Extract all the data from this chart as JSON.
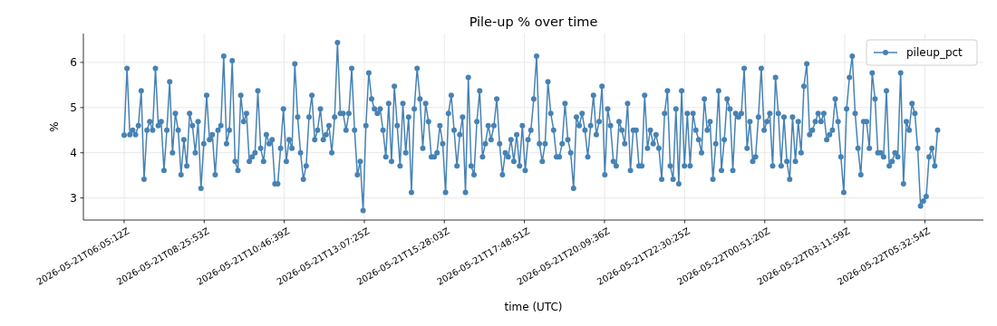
{
  "chart_data": {
    "type": "line",
    "title": "Pile-up % over time",
    "xlabel": "time (UTC)",
    "ylabel": "%",
    "x": [
      "2026-05-21T06:05:12",
      "2026-05-21T06:10:12",
      "2026-05-21T06:15:12",
      "2026-05-21T06:20:12",
      "2026-05-21T06:25:12",
      "2026-05-21T06:30:12",
      "2026-05-21T06:35:12",
      "2026-05-21T06:40:12",
      "2026-05-21T06:45:12",
      "2026-05-21T06:50:12",
      "2026-05-21T06:55:12",
      "2026-05-21T07:00:12",
      "2026-05-21T07:05:12",
      "2026-05-21T07:10:12",
      "2026-05-21T07:15:12",
      "2026-05-21T07:20:12",
      "2026-05-21T07:25:12",
      "2026-05-21T07:30:12",
      "2026-05-21T07:35:12",
      "2026-05-21T07:40:12",
      "2026-05-21T07:45:12",
      "2026-05-21T07:50:12",
      "2026-05-21T07:55:12",
      "2026-05-21T08:00:12",
      "2026-05-21T08:05:12",
      "2026-05-21T08:10:12",
      "2026-05-21T08:15:12",
      "2026-05-21T08:20:12",
      "2026-05-21T08:25:12",
      "2026-05-21T08:30:12",
      "2026-05-21T08:35:12",
      "2026-05-21T08:40:12",
      "2026-05-21T08:45:12",
      "2026-05-21T08:50:12",
      "2026-05-21T08:55:12",
      "2026-05-21T09:00:12",
      "2026-05-21T09:05:12",
      "2026-05-21T09:10:12",
      "2026-05-21T09:15:12",
      "2026-05-21T09:20:12",
      "2026-05-21T09:25:12",
      "2026-05-21T09:30:12",
      "2026-05-21T09:35:12",
      "2026-05-21T09:40:12",
      "2026-05-21T09:45:12",
      "2026-05-21T09:50:12",
      "2026-05-21T09:55:12",
      "2026-05-21T10:00:12",
      "2026-05-21T10:05:12",
      "2026-05-21T10:10:12",
      "2026-05-21T10:15:12",
      "2026-05-21T10:20:12",
      "2026-05-21T10:25:12",
      "2026-05-21T10:30:12",
      "2026-05-21T10:35:12",
      "2026-05-21T10:40:12",
      "2026-05-21T10:45:12",
      "2026-05-21T10:50:12",
      "2026-05-21T10:55:12",
      "2026-05-21T11:00:12",
      "2026-05-21T11:05:12",
      "2026-05-21T11:10:12",
      "2026-05-21T11:15:12",
      "2026-05-21T11:20:12",
      "2026-05-21T11:25:12",
      "2026-05-21T11:30:12",
      "2026-05-21T11:35:12",
      "2026-05-21T11:40:12",
      "2026-05-21T11:45:12",
      "2026-05-21T11:50:12",
      "2026-05-21T11:55:12",
      "2026-05-21T12:00:12",
      "2026-05-21T12:05:12",
      "2026-05-21T12:10:12",
      "2026-05-21T12:15:12",
      "2026-05-21T12:20:12",
      "2026-05-21T12:25:12",
      "2026-05-21T12:30:12",
      "2026-05-21T12:35:12",
      "2026-05-21T12:40:12",
      "2026-05-21T12:45:12",
      "2026-05-21T12:50:12",
      "2026-05-21T12:55:12",
      "2026-05-21T13:00:12",
      "2026-05-21T13:05:12",
      "2026-05-21T13:10:12",
      "2026-05-21T13:15:12",
      "2026-05-21T13:20:12",
      "2026-05-21T13:25:12",
      "2026-05-21T13:30:12",
      "2026-05-21T13:35:12",
      "2026-05-21T13:40:12",
      "2026-05-21T13:45:12",
      "2026-05-21T13:50:12",
      "2026-05-21T13:55:12",
      "2026-05-21T14:00:12",
      "2026-05-21T14:05:12",
      "2026-05-21T14:10:12",
      "2026-05-21T14:15:12",
      "2026-05-21T14:20:12",
      "2026-05-21T14:25:12",
      "2026-05-21T14:30:12",
      "2026-05-21T14:35:12",
      "2026-05-21T14:40:12",
      "2026-05-21T14:45:12",
      "2026-05-21T14:50:12",
      "2026-05-21T14:55:12",
      "2026-05-21T15:00:12",
      "2026-05-21T15:05:12",
      "2026-05-21T15:10:12",
      "2026-05-21T15:15:12",
      "2026-05-21T15:20:12",
      "2026-05-21T15:25:12",
      "2026-05-21T15:30:12",
      "2026-05-21T15:35:12",
      "2026-05-21T15:40:12",
      "2026-05-21T15:45:12",
      "2026-05-21T15:50:12",
      "2026-05-21T15:55:12",
      "2026-05-21T16:00:12",
      "2026-05-21T16:05:12",
      "2026-05-21T16:10:12",
      "2026-05-21T16:15:12",
      "2026-05-21T16:20:12",
      "2026-05-21T16:25:12",
      "2026-05-21T16:30:12",
      "2026-05-21T16:35:12",
      "2026-05-21T16:40:12",
      "2026-05-21T16:45:12",
      "2026-05-21T16:50:12",
      "2026-05-21T16:55:12",
      "2026-05-21T17:00:12",
      "2026-05-21T17:05:12",
      "2026-05-21T17:10:12",
      "2026-05-21T17:15:12",
      "2026-05-21T17:20:12",
      "2026-05-21T17:25:12",
      "2026-05-21T17:30:12",
      "2026-05-21T17:35:12",
      "2026-05-21T17:40:12",
      "2026-05-21T17:45:12",
      "2026-05-21T17:50:12",
      "2026-05-21T17:55:12",
      "2026-05-21T18:00:12",
      "2026-05-21T18:05:12",
      "2026-05-21T18:10:12",
      "2026-05-21T18:15:12",
      "2026-05-21T18:20:12",
      "2026-05-21T18:25:12",
      "2026-05-21T18:30:12",
      "2026-05-21T18:35:12",
      "2026-05-21T18:40:12",
      "2026-05-21T18:45:12",
      "2026-05-21T18:50:12",
      "2026-05-21T18:55:12",
      "2026-05-21T19:00:12",
      "2026-05-21T19:05:12",
      "2026-05-21T19:10:12",
      "2026-05-21T19:15:12",
      "2026-05-21T19:20:12",
      "2026-05-21T19:25:12",
      "2026-05-21T19:30:12",
      "2026-05-21T19:35:12",
      "2026-05-21T19:40:12",
      "2026-05-21T19:45:12",
      "2026-05-21T19:50:12",
      "2026-05-21T19:55:12",
      "2026-05-21T20:00:12",
      "2026-05-21T20:05:12",
      "2026-05-21T20:10:12",
      "2026-05-21T20:15:12",
      "2026-05-21T20:20:12",
      "2026-05-21T20:25:12",
      "2026-05-21T20:30:12",
      "2026-05-21T20:35:12",
      "2026-05-21T20:40:12",
      "2026-05-21T20:45:12",
      "2026-05-21T20:50:12",
      "2026-05-21T20:55:12",
      "2026-05-21T21:00:12",
      "2026-05-21T21:05:12",
      "2026-05-21T21:10:12",
      "2026-05-21T21:15:12",
      "2026-05-21T21:20:12",
      "2026-05-21T21:25:12",
      "2026-05-21T21:30:12",
      "2026-05-21T21:35:12",
      "2026-05-21T21:40:12",
      "2026-05-21T21:45:12",
      "2026-05-21T21:50:12",
      "2026-05-21T21:55:12",
      "2026-05-21T22:00:12",
      "2026-05-21T22:05:12",
      "2026-05-21T22:10:12",
      "2026-05-21T22:15:12",
      "2026-05-21T22:20:12",
      "2026-05-21T22:25:12",
      "2026-05-21T22:30:12",
      "2026-05-21T22:35:12",
      "2026-05-21T22:40:12",
      "2026-05-21T22:45:12",
      "2026-05-21T22:50:12",
      "2026-05-21T22:55:12",
      "2026-05-21T23:00:12",
      "2026-05-21T23:05:12",
      "2026-05-21T23:10:12",
      "2026-05-21T23:15:12",
      "2026-05-21T23:20:12",
      "2026-05-21T23:25:12",
      "2026-05-21T23:30:12",
      "2026-05-21T23:35:12",
      "2026-05-21T23:40:12",
      "2026-05-21T23:45:12",
      "2026-05-21T23:50:12",
      "2026-05-21T23:55:12",
      "2026-05-22T00:00:12",
      "2026-05-22T00:05:12",
      "2026-05-22T00:10:12",
      "2026-05-22T00:15:12",
      "2026-05-22T00:20:12",
      "2026-05-22T00:25:12",
      "2026-05-22T00:30:12",
      "2026-05-22T00:35:12",
      "2026-05-22T00:40:12",
      "2026-05-22T00:45:12",
      "2026-05-22T00:50:12",
      "2026-05-22T00:55:12",
      "2026-05-22T01:00:12",
      "2026-05-22T01:05:12",
      "2026-05-22T01:10:12",
      "2026-05-22T01:15:12",
      "2026-05-22T01:20:12",
      "2026-05-22T01:25:12",
      "2026-05-22T01:30:12",
      "2026-05-22T01:35:12",
      "2026-05-22T01:40:12",
      "2026-05-22T01:45:12",
      "2026-05-22T01:50:12",
      "2026-05-22T01:55:12",
      "2026-05-22T02:00:12",
      "2026-05-22T02:05:12",
      "2026-05-22T02:10:12",
      "2026-05-22T02:15:12",
      "2026-05-22T02:20:12",
      "2026-05-22T02:25:12",
      "2026-05-22T02:30:12",
      "2026-05-22T02:35:12",
      "2026-05-22T02:40:12",
      "2026-05-22T02:45:12",
      "2026-05-22T02:50:12",
      "2026-05-22T02:55:12",
      "2026-05-22T03:00:12",
      "2026-05-22T03:05:12",
      "2026-05-22T03:10:12",
      "2026-05-22T03:15:12",
      "2026-05-22T03:20:12",
      "2026-05-22T03:25:12",
      "2026-05-22T03:30:12",
      "2026-05-22T03:35:12",
      "2026-05-22T03:40:12",
      "2026-05-22T03:45:12",
      "2026-05-22T03:50:12",
      "2026-05-22T03:55:12",
      "2026-05-22T04:00:12",
      "2026-05-22T04:05:12",
      "2026-05-22T04:10:12",
      "2026-05-22T04:15:12",
      "2026-05-22T04:20:12",
      "2026-05-22T04:25:12",
      "2026-05-22T04:30:12",
      "2026-05-22T04:35:12",
      "2026-05-22T04:40:12",
      "2026-05-22T04:45:12",
      "2026-05-22T04:50:12",
      "2026-05-22T04:55:12",
      "2026-05-22T05:00:12",
      "2026-05-22T05:05:12",
      "2026-05-22T05:10:12",
      "2026-05-22T05:15:12",
      "2026-05-22T05:20:12",
      "2026-05-22T05:25:12",
      "2026-05-22T05:30:12",
      "2026-05-22T05:35:12",
      "2026-05-22T05:40:12",
      "2026-05-22T05:45:12",
      "2026-05-22T05:50:12",
      "2026-05-22T05:55:12"
    ],
    "series": [
      {
        "name": "pileup_pct",
        "color": "#4682b4",
        "values": [
          4.39,
          5.87,
          4.4,
          4.5,
          4.4,
          4.6,
          5.37,
          3.41,
          4.5,
          4.69,
          4.5,
          5.87,
          4.6,
          4.69,
          3.61,
          4.5,
          5.57,
          4.0,
          4.87,
          4.5,
          3.51,
          4.29,
          3.71,
          4.87,
          4.6,
          4.0,
          4.69,
          3.21,
          4.2,
          5.27,
          4.29,
          4.4,
          3.51,
          4.5,
          4.6,
          6.14,
          4.2,
          4.5,
          6.04,
          3.81,
          3.61,
          5.27,
          4.69,
          4.87,
          3.81,
          3.91,
          4.0,
          5.37,
          4.1,
          3.81,
          4.4,
          4.2,
          4.29,
          3.31,
          3.31,
          4.1,
          4.97,
          3.81,
          4.29,
          4.1,
          5.97,
          4.79,
          4.0,
          3.41,
          3.71,
          4.79,
          5.27,
          4.29,
          4.5,
          4.97,
          4.29,
          4.4,
          4.6,
          4.0,
          4.79,
          6.44,
          4.87,
          4.87,
          4.5,
          4.87,
          5.87,
          4.5,
          3.51,
          3.81,
          2.72,
          4.6,
          5.77,
          5.19,
          4.97,
          4.87,
          4.97,
          4.5,
          3.91,
          5.09,
          3.81,
          5.47,
          4.6,
          3.71,
          5.09,
          4.0,
          4.79,
          3.12,
          4.97,
          5.87,
          5.19,
          4.1,
          5.09,
          4.69,
          3.91,
          3.91,
          4.0,
          4.6,
          4.2,
          3.12,
          4.87,
          5.27,
          4.5,
          3.71,
          4.4,
          4.79,
          3.12,
          5.67,
          3.71,
          3.51,
          4.69,
          5.37,
          3.91,
          4.2,
          4.6,
          4.29,
          4.6,
          5.19,
          4.2,
          3.51,
          4.0,
          3.91,
          4.29,
          3.81,
          4.4,
          3.71,
          4.6,
          3.61,
          4.29,
          4.5,
          5.19,
          6.14,
          4.2,
          3.81,
          4.2,
          5.57,
          4.87,
          4.5,
          3.91,
          3.91,
          4.2,
          5.09,
          4.29,
          4.0,
          3.21,
          4.79,
          4.6,
          4.87,
          4.5,
          3.91,
          4.6,
          5.27,
          4.4,
          4.69,
          5.47,
          3.51,
          4.97,
          4.6,
          3.81,
          3.71,
          4.69,
          4.5,
          4.2,
          5.09,
          3.61,
          4.5,
          4.5,
          3.71,
          3.71,
          5.27,
          4.1,
          4.5,
          4.2,
          4.4,
          4.1,
          3.41,
          4.87,
          5.37,
          3.71,
          3.41,
          4.97,
          3.31,
          5.37,
          3.71,
          4.87,
          3.71,
          4.87,
          4.5,
          4.29,
          4.0,
          5.19,
          4.5,
          4.69,
          3.41,
          4.2,
          5.37,
          3.61,
          4.29,
          5.19,
          4.97,
          3.61,
          4.87,
          4.79,
          4.87,
          5.87,
          4.1,
          4.69,
          3.81,
          3.91,
          4.79,
          5.87,
          4.5,
          4.69,
          4.87,
          3.71,
          5.67,
          4.87,
          3.71,
          4.79,
          3.81,
          3.41,
          4.79,
          3.81,
          4.69,
          4.0,
          5.47,
          5.97,
          4.4,
          4.5,
          4.69,
          4.87,
          4.69,
          4.87,
          4.29,
          4.4,
          4.5,
          5.19,
          4.69,
          3.91,
          3.12,
          4.97,
          5.67,
          6.14,
          4.87,
          4.1,
          3.51,
          4.69,
          4.69,
          4.1,
          5.77,
          5.19,
          4.0,
          4.0,
          3.91,
          5.37,
          3.71,
          3.81,
          4.0,
          3.91,
          5.77,
          3.31,
          4.69,
          4.5,
          5.09,
          4.87,
          4.1,
          2.82,
          2.93,
          3.03,
          3.91,
          4.1,
          3.71,
          4.5
        ]
      }
    ],
    "xlim": [
      "2026-05-21T04:53:30",
      "2026-05-22T07:15:42"
    ],
    "xticks": [
      {
        "value": "2026-05-21T06:05:12",
        "label": "2026-05-21T06:05:12Z"
      },
      {
        "value": "2026-05-21T08:25:53",
        "label": "2026-05-21T08:25:53Z"
      },
      {
        "value": "2026-05-21T10:46:39",
        "label": "2026-05-21T10:46:39Z"
      },
      {
        "value": "2026-05-21T13:07:25",
        "label": "2026-05-21T13:07:25Z"
      },
      {
        "value": "2026-05-21T15:28:03",
        "label": "2026-05-21T15:28:03Z"
      },
      {
        "value": "2026-05-21T17:48:51",
        "label": "2026-05-21T17:48:51Z"
      },
      {
        "value": "2026-05-21T20:09:36",
        "label": "2026-05-21T20:09:36Z"
      },
      {
        "value": "2026-05-21T22:30:25",
        "label": "2026-05-21T22:30:25Z"
      },
      {
        "value": "2026-05-22T00:51:20",
        "label": "2026-05-22T00:51:20Z"
      },
      {
        "value": "2026-05-22T03:11:59",
        "label": "2026-05-22T03:11:59Z"
      },
      {
        "value": "2026-05-22T05:32:54",
        "label": "2026-05-22T05:32:54Z"
      }
    ],
    "ylim": [
      2.51,
      6.64
    ],
    "yticks": [
      3,
      4,
      5,
      6
    ],
    "grid": true,
    "legend": "top right",
    "marker": "circle",
    "line_style": "solid"
  }
}
